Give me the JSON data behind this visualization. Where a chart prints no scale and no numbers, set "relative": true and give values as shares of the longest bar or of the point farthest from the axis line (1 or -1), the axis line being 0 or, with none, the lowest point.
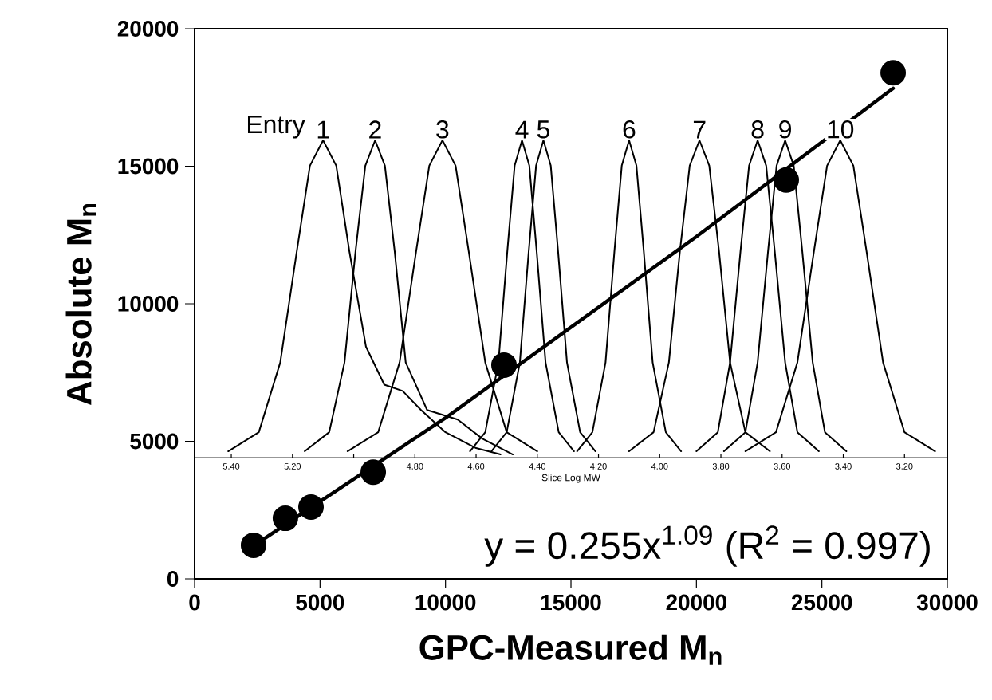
{
  "chart_data": [
    {
      "type": "scatter",
      "xlabel": "GPC-Measured M$_{n}$",
      "ylabel": "Absolute M$_{n}$",
      "xlim": [
        0,
        30000
      ],
      "ylim": [
        0,
        20000
      ],
      "xticks": [
        0,
        5000,
        10000,
        15000,
        20000,
        25000,
        30000
      ],
      "yticks": [
        0,
        5000,
        10000,
        15000,
        20000
      ],
      "annotations": [
        "y = 0.255x$^{1.09}$ (R$^{2}$ = 0.997)"
      ],
      "series": [
        {
          "type": "line",
          "color": "#000000",
          "x": [
            2350,
            10000,
            20000,
            27840
          ],
          "values": [
            1200,
            5850,
            12440,
            17830
          ]
        },
        {
          "type": "scatter",
          "marker": "circle",
          "color": "#000000",
          "x": [
            2350,
            3620,
            4640,
            7120,
            12330,
            23580,
            27840
          ],
          "values": [
            1220,
            2200,
            2610,
            3880,
            7770,
            14500,
            18400
          ]
        }
      ]
    },
    {
      "type": "line",
      "relative": true,
      "xlabel": "Slice Log MW",
      "xlim": [
        5.52,
        3.06
      ],
      "tick_labels": "x",
      "annotations": [
        "Entry"
      ],
      "xticks": [
        {
          "value": 5.4,
          "label": "5.40"
        },
        {
          "value": 5.2,
          "label": "5.20"
        },
        {
          "value": 5.0,
          "label": null
        },
        {
          "value": 4.8,
          "label": "4.80"
        },
        {
          "value": 4.6,
          "label": "4.60"
        },
        {
          "value": 4.4,
          "label": "4.40"
        },
        {
          "value": 4.2,
          "label": "4.20"
        },
        {
          "value": 4.0,
          "label": "4.00"
        },
        {
          "value": 3.8,
          "label": "3.80"
        },
        {
          "value": 3.6,
          "label": "3.60"
        },
        {
          "value": 3.4,
          "label": "3.40"
        },
        {
          "value": 3.2,
          "label": "3.20"
        }
      ],
      "series": [
        {
          "name": "1",
          "color": "#000000",
          "x": [
            5.41,
            5.31,
            5.24,
            5.186,
            5.143,
            5.1,
            5.057,
            5.014,
            4.96,
            4.9,
            4.84,
            4.78,
            4.7,
            4.6,
            4.52
          ],
          "values": [
            0.02,
            0.08,
            0.3,
            0.65,
            0.92,
            1,
            0.92,
            0.65,
            0.35,
            0.23,
            0.21,
            0.15,
            0.08,
            0.03,
            0.01
          ]
        },
        {
          "name": "2",
          "color": "#000000",
          "x": [
            5.16,
            5.08,
            5.03,
            4.994,
            4.962,
            4.93,
            4.898,
            4.866,
            4.83,
            4.76,
            4.66,
            4.58,
            4.48
          ],
          "values": [
            0.02,
            0.08,
            0.3,
            0.65,
            0.92,
            1,
            0.92,
            0.65,
            0.3,
            0.15,
            0.12,
            0.06,
            0.01
          ]
        },
        {
          "name": "3",
          "color": "#000000",
          "x": [
            5.02,
            4.92,
            4.85,
            4.796,
            4.753,
            4.71,
            4.667,
            4.624,
            4.57,
            4.5,
            4.4
          ],
          "values": [
            0.02,
            0.08,
            0.3,
            0.65,
            0.92,
            1,
            0.92,
            0.65,
            0.3,
            0.08,
            0.02
          ]
        },
        {
          "name": "4",
          "color": "#000000",
          "x": [
            4.62,
            4.57,
            4.527,
            4.498,
            4.474,
            4.45,
            4.426,
            4.402,
            4.373,
            4.33,
            4.28
          ],
          "values": [
            0.02,
            0.08,
            0.3,
            0.65,
            0.92,
            1,
            0.92,
            0.65,
            0.3,
            0.08,
            0.02
          ]
        },
        {
          "name": "5",
          "color": "#000000",
          "x": [
            4.55,
            4.5,
            4.457,
            4.428,
            4.404,
            4.38,
            4.356,
            4.332,
            4.303,
            4.26,
            4.21
          ],
          "values": [
            0.02,
            0.08,
            0.3,
            0.65,
            0.92,
            1,
            0.92,
            0.65,
            0.3,
            0.08,
            0.02
          ]
        },
        {
          "name": "6",
          "color": "#000000",
          "x": [
            4.27,
            4.22,
            4.177,
            4.148,
            4.124,
            4.1,
            4.076,
            4.052,
            4.023,
            3.98,
            3.93
          ],
          "values": [
            0.02,
            0.08,
            0.3,
            0.65,
            0.92,
            1,
            0.92,
            0.65,
            0.3,
            0.08,
            0.02
          ]
        },
        {
          "name": "7",
          "color": "#000000",
          "x": [
            4.1,
            4.02,
            3.97,
            3.934,
            3.902,
            3.87,
            3.838,
            3.806,
            3.77,
            3.72,
            3.64
          ],
          "values": [
            0.02,
            0.08,
            0.3,
            0.65,
            0.92,
            1,
            0.92,
            0.65,
            0.3,
            0.08,
            0.02
          ]
        },
        {
          "name": "8",
          "color": "#000000",
          "x": [
            3.88,
            3.81,
            3.77,
            3.736,
            3.708,
            3.68,
            3.652,
            3.624,
            3.59,
            3.55,
            3.48
          ],
          "values": [
            0.02,
            0.08,
            0.3,
            0.65,
            0.92,
            1,
            0.92,
            0.65,
            0.3,
            0.08,
            0.02
          ]
        },
        {
          "name": "9",
          "color": "#000000",
          "x": [
            3.79,
            3.72,
            3.68,
            3.646,
            3.618,
            3.59,
            3.562,
            3.534,
            3.5,
            3.46,
            3.39
          ],
          "values": [
            0.02,
            0.08,
            0.3,
            0.65,
            0.92,
            1,
            0.92,
            0.65,
            0.3,
            0.08,
            0.02
          ]
        },
        {
          "name": "10",
          "color": "#000000",
          "x": [
            3.72,
            3.62,
            3.55,
            3.496,
            3.453,
            3.41,
            3.367,
            3.324,
            3.27,
            3.2,
            3.1
          ],
          "values": [
            0.02,
            0.08,
            0.3,
            0.65,
            0.92,
            1,
            0.92,
            0.65,
            0.3,
            0.08,
            0.02
          ]
        }
      ]
    }
  ]
}
